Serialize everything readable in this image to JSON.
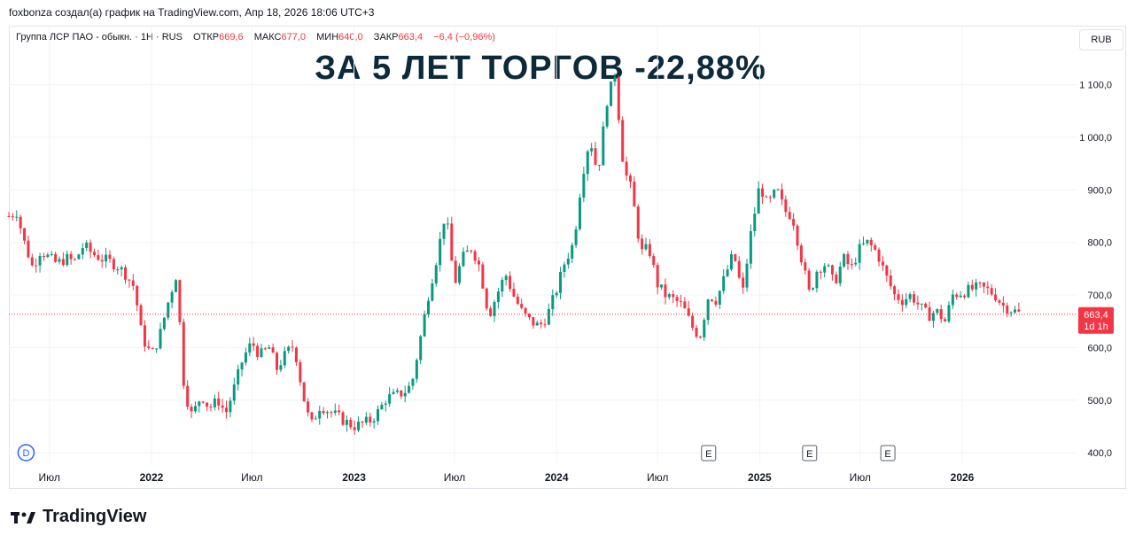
{
  "header": {
    "credit": "foxbonza создал(а) график на TradingView.com, Апр 18, 2026 18:06 UTC+3"
  },
  "legend": {
    "symbol": "Группа ЛСР ПАО - обыкн. · 1Н · RUS",
    "open_label": "ОТКР",
    "open_value": "669,6",
    "high_label": "МАКС",
    "high_value": "677,0",
    "low_label": "МИН",
    "low_value": "640,0",
    "close_label": "ЗАКР",
    "close_value": "663,4",
    "change": "−6,4 (−0,96%)"
  },
  "currency_button": "RUB",
  "headline": "ЗА 5 ЛЕТ ТОРГОВ -22,88%",
  "brand": "TradingView",
  "colors": {
    "up": "#089981",
    "down": "#f23645",
    "grid": "#f0f3fa",
    "text": "#131722",
    "headline": "#0d2a3a"
  },
  "chart_data": {
    "type": "candlestick",
    "title": "Группа ЛСР ПАО - обыкн.",
    "interval": "1Н",
    "y_ticks": [
      "400,0",
      "500,0",
      "600,0",
      "700,0",
      "800,0",
      "900,0",
      "1000,0",
      "1100,0"
    ],
    "y_tick_labels": [
      "400,0",
      "500,0",
      "600,0",
      "700,0",
      "800,0",
      "900,0",
      "1 000,0",
      "1 100,0"
    ],
    "y_ticks_values": [
      400,
      500,
      600,
      700,
      800,
      900,
      1000,
      1100
    ],
    "ylim": [
      380,
      1160
    ],
    "x_tick_labels": [
      "Июл",
      "2022",
      "Июл",
      "2023",
      "Июл",
      "2024",
      "Июл",
      "2025",
      "Июл",
      "2026"
    ],
    "x_ticks": [
      {
        "label": "Июл",
        "date": "2021-07-01"
      },
      {
        "label": "2022",
        "date": "2022-01-01"
      },
      {
        "label": "Июл",
        "date": "2022-07-01"
      },
      {
        "label": "2023",
        "date": "2023-01-01"
      },
      {
        "label": "Июл",
        "date": "2023-07-01"
      },
      {
        "label": "2024",
        "date": "2024-01-01"
      },
      {
        "label": "Июл",
        "date": "2024-07-01"
      },
      {
        "label": "2025",
        "date": "2025-01-01"
      },
      {
        "label": "Июл",
        "date": "2025-07-01"
      },
      {
        "label": "2026",
        "date": "2026-01-01"
      }
    ],
    "xlim": [
      "2021-04-19",
      "2026-07-10"
    ],
    "last_price": {
      "value": 663.4,
      "label": "663,4",
      "countdown": "1d 1h"
    },
    "earnings_marker": "E",
    "earnings_dates": [
      "2024-10-01",
      "2025-04-01",
      "2025-08-20"
    ],
    "dividend_marker": "D",
    "dividend_date": "2021-05-20",
    "series": [
      {
        "date": "2021-04-19",
        "close": 850
      },
      {
        "date": "2021-05-03",
        "close": 858
      },
      {
        "date": "2021-05-17",
        "close": 800
      },
      {
        "date": "2021-06-01",
        "close": 752
      },
      {
        "date": "2021-06-15",
        "close": 785
      },
      {
        "date": "2021-07-01",
        "close": 770
      },
      {
        "date": "2021-07-15",
        "close": 760
      },
      {
        "date": "2021-08-01",
        "close": 770
      },
      {
        "date": "2021-08-15",
        "close": 763
      },
      {
        "date": "2021-09-01",
        "close": 795
      },
      {
        "date": "2021-09-15",
        "close": 780
      },
      {
        "date": "2021-10-01",
        "close": 770
      },
      {
        "date": "2021-10-15",
        "close": 765
      },
      {
        "date": "2021-11-01",
        "close": 755
      },
      {
        "date": "2021-11-15",
        "close": 740
      },
      {
        "date": "2021-12-01",
        "close": 715
      },
      {
        "date": "2021-12-15",
        "close": 620
      },
      {
        "date": "2022-01-01",
        "close": 585
      },
      {
        "date": "2022-01-15",
        "close": 620
      },
      {
        "date": "2022-02-01",
        "close": 690
      },
      {
        "date": "2022-02-15",
        "close": 740
      },
      {
        "date": "2022-03-01",
        "close": 520
      },
      {
        "date": "2022-03-15",
        "close": 470
      },
      {
        "date": "2022-04-01",
        "close": 510
      },
      {
        "date": "2022-04-15",
        "close": 485
      },
      {
        "date": "2022-05-01",
        "close": 500
      },
      {
        "date": "2022-05-15",
        "close": 475
      },
      {
        "date": "2022-06-01",
        "close": 530
      },
      {
        "date": "2022-06-15",
        "close": 580
      },
      {
        "date": "2022-07-01",
        "close": 610
      },
      {
        "date": "2022-07-15",
        "close": 585
      },
      {
        "date": "2022-08-01",
        "close": 600
      },
      {
        "date": "2022-08-15",
        "close": 560
      },
      {
        "date": "2022-09-01",
        "close": 590
      },
      {
        "date": "2022-09-15",
        "close": 605
      },
      {
        "date": "2022-10-01",
        "close": 510
      },
      {
        "date": "2022-10-15",
        "close": 450
      },
      {
        "date": "2022-11-01",
        "close": 490
      },
      {
        "date": "2022-11-15",
        "close": 480
      },
      {
        "date": "2022-12-01",
        "close": 470
      },
      {
        "date": "2022-12-15",
        "close": 460
      },
      {
        "date": "2023-01-01",
        "close": 450
      },
      {
        "date": "2023-01-15",
        "close": 455
      },
      {
        "date": "2023-02-01",
        "close": 462
      },
      {
        "date": "2023-02-15",
        "close": 480
      },
      {
        "date": "2023-03-01",
        "close": 505
      },
      {
        "date": "2023-03-15",
        "close": 508
      },
      {
        "date": "2023-04-01",
        "close": 515
      },
      {
        "date": "2023-04-15",
        "close": 530
      },
      {
        "date": "2023-05-01",
        "close": 620
      },
      {
        "date": "2023-05-15",
        "close": 700
      },
      {
        "date": "2023-06-01",
        "close": 780
      },
      {
        "date": "2023-06-15",
        "close": 860
      },
      {
        "date": "2023-07-01",
        "close": 720
      },
      {
        "date": "2023-07-15",
        "close": 770
      },
      {
        "date": "2023-08-01",
        "close": 790
      },
      {
        "date": "2023-08-15",
        "close": 755
      },
      {
        "date": "2023-09-01",
        "close": 660
      },
      {
        "date": "2023-09-15",
        "close": 700
      },
      {
        "date": "2023-10-01",
        "close": 740
      },
      {
        "date": "2023-10-15",
        "close": 700
      },
      {
        "date": "2023-11-01",
        "close": 665
      },
      {
        "date": "2023-11-15",
        "close": 650
      },
      {
        "date": "2023-12-01",
        "close": 640
      },
      {
        "date": "2023-12-15",
        "close": 660
      },
      {
        "date": "2024-01-01",
        "close": 710
      },
      {
        "date": "2024-01-15",
        "close": 760
      },
      {
        "date": "2024-02-01",
        "close": 800
      },
      {
        "date": "2024-02-15",
        "close": 920
      },
      {
        "date": "2024-03-01",
        "close": 1000
      },
      {
        "date": "2024-03-15",
        "close": 930
      },
      {
        "date": "2024-04-01",
        "close": 1070
      },
      {
        "date": "2024-04-15",
        "close": 1120
      },
      {
        "date": "2024-05-01",
        "close": 940
      },
      {
        "date": "2024-05-15",
        "close": 900
      },
      {
        "date": "2024-06-01",
        "close": 780
      },
      {
        "date": "2024-06-15",
        "close": 790
      },
      {
        "date": "2024-07-01",
        "close": 720
      },
      {
        "date": "2024-07-15",
        "close": 700
      },
      {
        "date": "2024-08-01",
        "close": 690
      },
      {
        "date": "2024-08-15",
        "close": 680
      },
      {
        "date": "2024-09-01",
        "close": 640
      },
      {
        "date": "2024-09-15",
        "close": 620
      },
      {
        "date": "2024-10-01",
        "close": 700
      },
      {
        "date": "2024-10-15",
        "close": 690
      },
      {
        "date": "2024-11-01",
        "close": 740
      },
      {
        "date": "2024-11-15",
        "close": 780
      },
      {
        "date": "2024-12-01",
        "close": 700
      },
      {
        "date": "2024-12-15",
        "close": 810
      },
      {
        "date": "2025-01-01",
        "close": 910
      },
      {
        "date": "2025-01-15",
        "close": 870
      },
      {
        "date": "2025-02-01",
        "close": 900
      },
      {
        "date": "2025-02-15",
        "close": 860
      },
      {
        "date": "2025-03-01",
        "close": 850
      },
      {
        "date": "2025-03-15",
        "close": 780
      },
      {
        "date": "2025-04-01",
        "close": 700
      },
      {
        "date": "2025-04-15",
        "close": 750
      },
      {
        "date": "2025-05-01",
        "close": 760
      },
      {
        "date": "2025-05-15",
        "close": 720
      },
      {
        "date": "2025-06-01",
        "close": 770
      },
      {
        "date": "2025-06-15",
        "close": 750
      },
      {
        "date": "2025-07-01",
        "close": 790
      },
      {
        "date": "2025-07-15",
        "close": 800
      },
      {
        "date": "2025-08-01",
        "close": 780
      },
      {
        "date": "2025-08-15",
        "close": 740
      },
      {
        "date": "2025-09-01",
        "close": 700
      },
      {
        "date": "2025-09-15",
        "close": 690
      },
      {
        "date": "2025-10-01",
        "close": 700
      },
      {
        "date": "2025-10-15",
        "close": 680
      },
      {
        "date": "2025-11-01",
        "close": 660
      },
      {
        "date": "2025-11-15",
        "close": 670
      },
      {
        "date": "2025-12-01",
        "close": 650
      },
      {
        "date": "2025-12-15",
        "close": 700
      },
      {
        "date": "2026-01-01",
        "close": 705
      },
      {
        "date": "2026-01-15",
        "close": 710
      },
      {
        "date": "2026-02-01",
        "close": 715
      },
      {
        "date": "2026-02-15",
        "close": 710
      },
      {
        "date": "2026-03-01",
        "close": 700
      },
      {
        "date": "2026-03-15",
        "close": 680
      },
      {
        "date": "2026-04-17",
        "close": 663.4
      }
    ]
  }
}
